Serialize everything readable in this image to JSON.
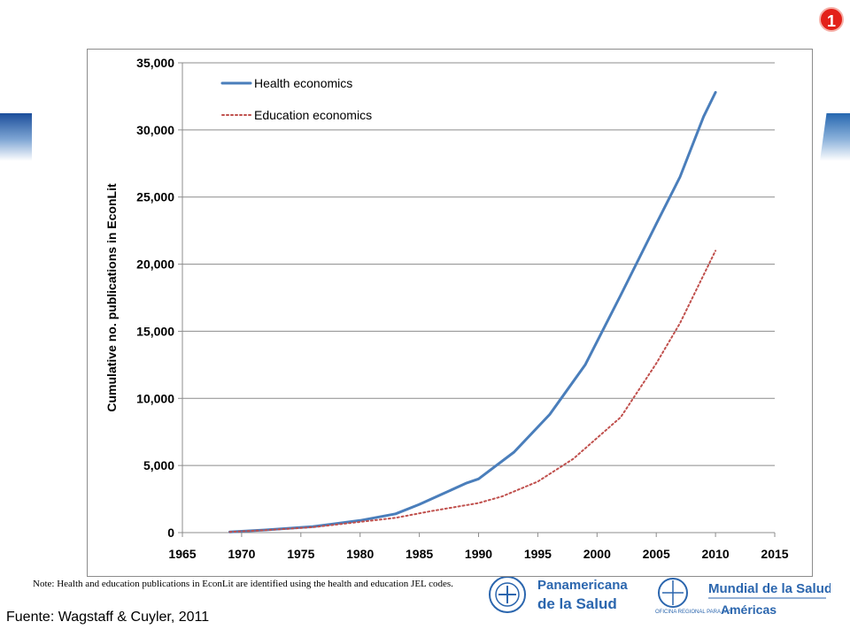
{
  "slide_number": "1",
  "footer": {
    "source": "Fuente: Wagstaff & Cuyler, 2011",
    "note": "Note: Health and education publications in EconLit are identified using the health and education JEL codes."
  },
  "logos": {
    "left_text_1": "Panamericana",
    "left_text_2": "de la Salud",
    "right_text_1": "Mundial de la Salud",
    "right_small": "OFICINA REGIONAL PARA LAS",
    "right_text_2": "Américas"
  },
  "colors": {
    "health": "#4a7ebb",
    "education": "#c0504d",
    "badge": "#e32119"
  },
  "chart_data": {
    "type": "line",
    "title": "",
    "xlabel": "",
    "ylabel": "Cumulative no. publications in EconLit",
    "xlim": [
      1965,
      2015
    ],
    "ylim": [
      0,
      35000
    ],
    "x_ticks": [
      "1965",
      "1970",
      "1975",
      "1980",
      "1985",
      "1990",
      "1995",
      "2000",
      "2005",
      "2010",
      "2015"
    ],
    "y_ticks": [
      "0",
      "5,000",
      "10,000",
      "15,000",
      "20,000",
      "25,000",
      "30,000",
      "35,000"
    ],
    "grid": "horizontal",
    "legend_position": "top-left",
    "series": [
      {
        "name": "Health economics",
        "style": "solid",
        "x": [
          1969,
          1972,
          1976,
          1980,
          1983,
          1985,
          1987,
          1989,
          1990,
          1993,
          1996,
          1999,
          2002,
          2005,
          2007,
          2009,
          2010
        ],
        "values": [
          50,
          200,
          450,
          900,
          1400,
          2100,
          2900,
          3700,
          4000,
          6000,
          8800,
          12500,
          17700,
          23000,
          26500,
          31000,
          32800
        ]
      },
      {
        "name": "Education economics",
        "style": "dotted",
        "x": [
          1969,
          1972,
          1976,
          1980,
          1983,
          1986,
          1990,
          1992,
          1995,
          1998,
          2002,
          2005,
          2007,
          2009,
          2010
        ],
        "values": [
          50,
          180,
          400,
          800,
          1100,
          1600,
          2200,
          2700,
          3800,
          5500,
          8600,
          12600,
          15600,
          19200,
          21000
        ]
      }
    ]
  }
}
